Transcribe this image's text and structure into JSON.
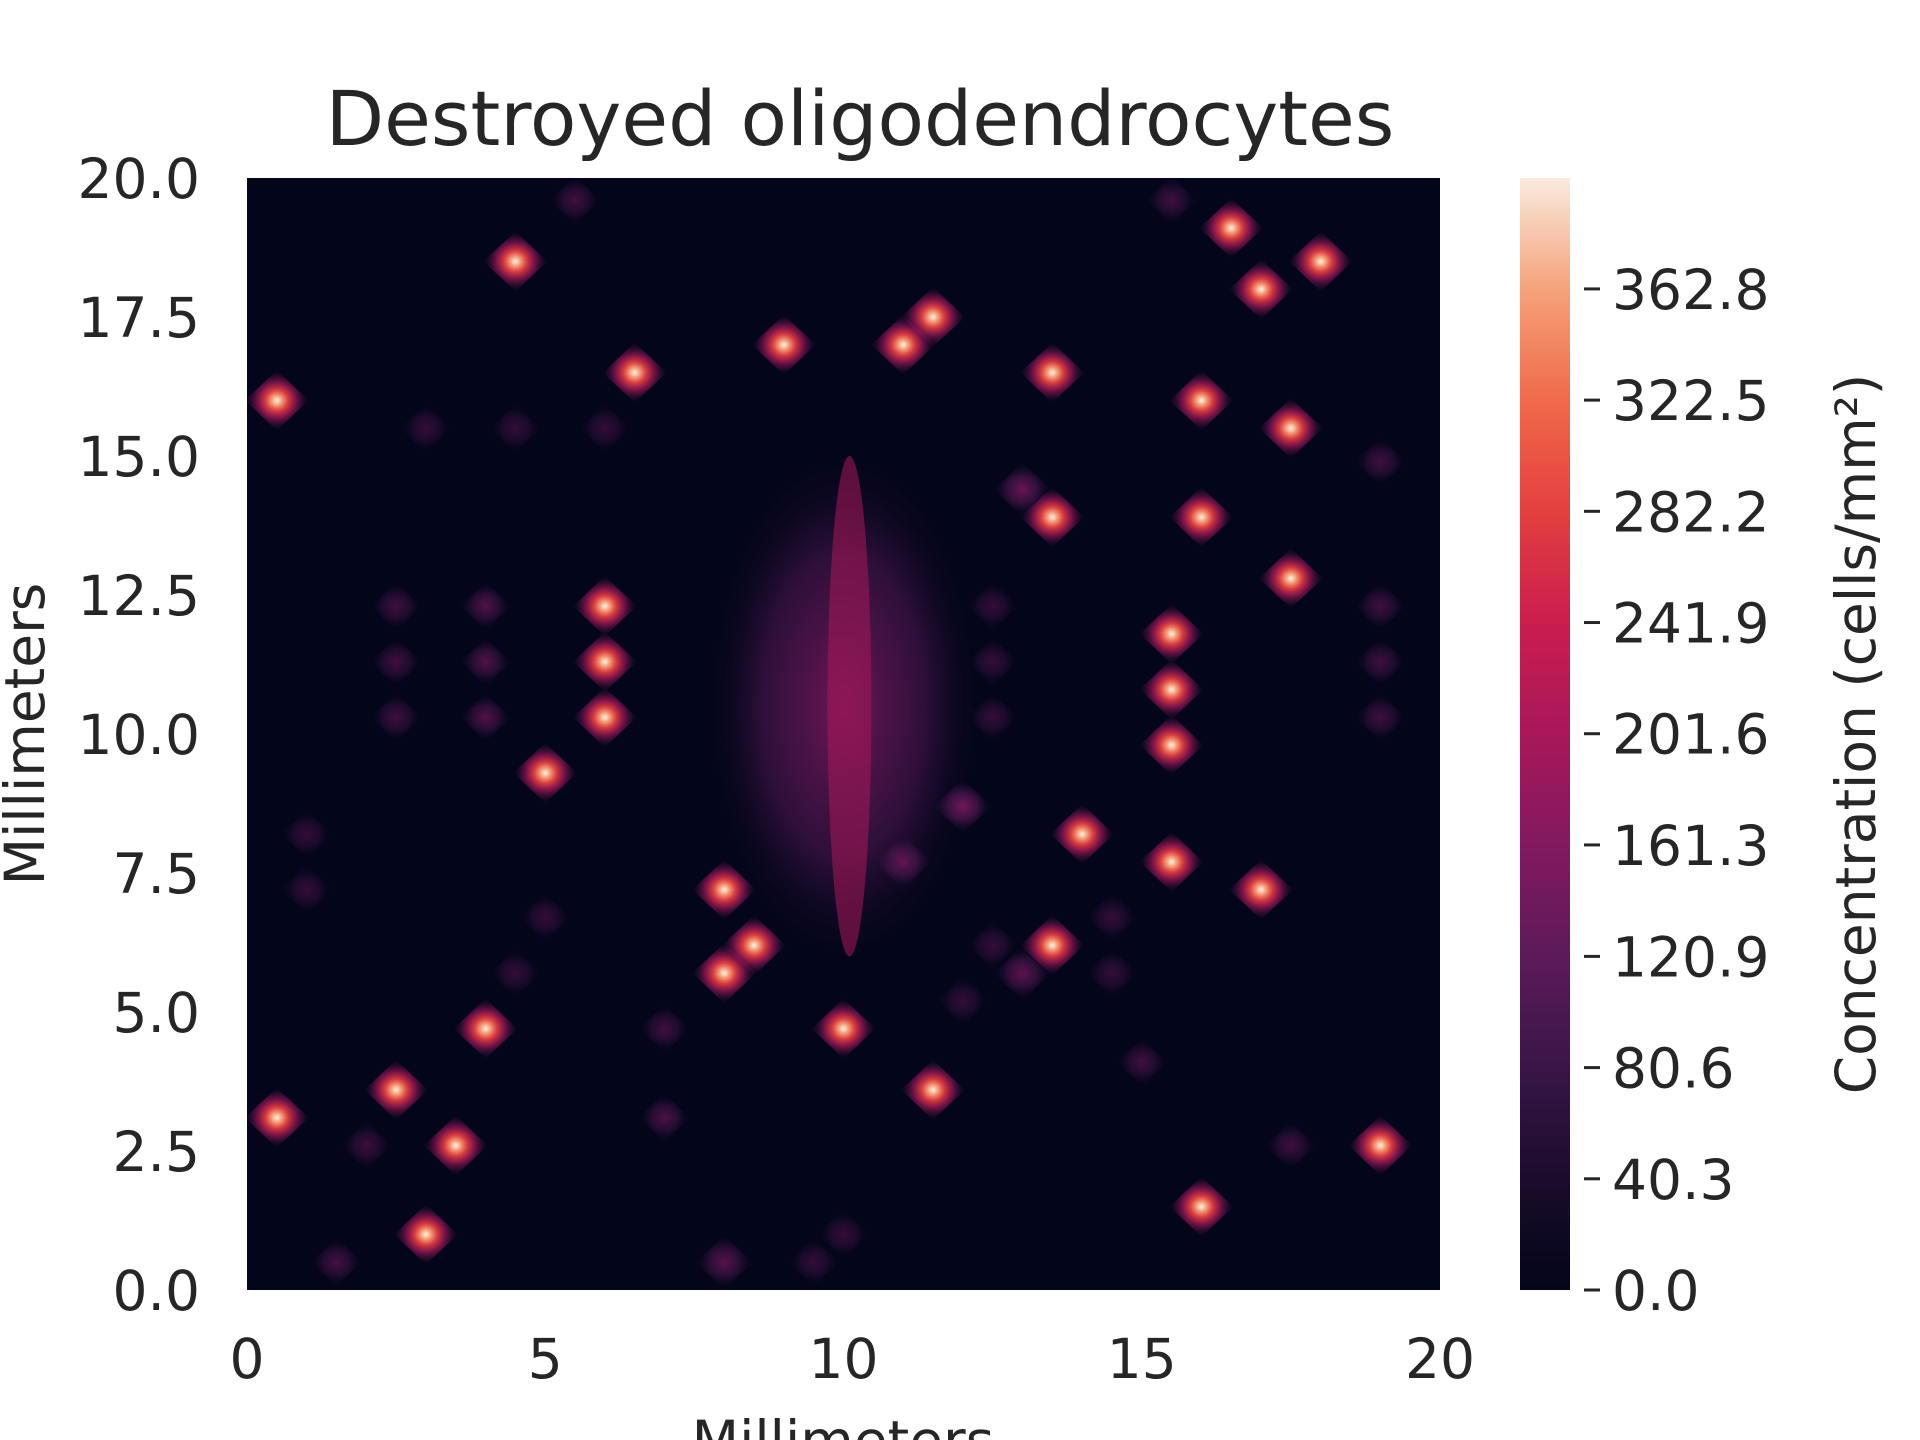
{
  "chart_data": {
    "type": "heatmap",
    "title": "Destroyed oligodendrocytes",
    "xlabel": "Millimeters",
    "ylabel": "Millimeters",
    "xlim": [
      0,
      20
    ],
    "ylim": [
      0,
      20
    ],
    "x_ticks": [
      "0",
      "5",
      "10",
      "15",
      "20"
    ],
    "y_ticks": [
      "0.0",
      "2.5",
      "5.0",
      "7.5",
      "10.0",
      "12.5",
      "15.0",
      "17.5",
      "20.0"
    ],
    "colorbar": {
      "label": "Concentration (cells/mm²)",
      "range": [
        0,
        403
      ],
      "ticks": [
        "0.0",
        "40.3",
        "80.6",
        "120.9",
        "161.3",
        "201.6",
        "241.9",
        "282.2",
        "322.5",
        "362.8"
      ],
      "tick_values": [
        0,
        40.3,
        80.6,
        120.9,
        161.3,
        201.6,
        241.9,
        282.2,
        322.5,
        362.8
      ],
      "colormap": "rocket"
    },
    "hotspots": [
      {
        "x": 0.5,
        "y": 3.1,
        "v": 340
      },
      {
        "x": 0.5,
        "y": 16.0,
        "v": 300
      },
      {
        "x": 1.0,
        "y": 8.2,
        "v": 60
      },
      {
        "x": 1.0,
        "y": 7.2,
        "v": 60
      },
      {
        "x": 1.5,
        "y": 0.5,
        "v": 120
      },
      {
        "x": 2.0,
        "y": 2.6,
        "v": 100
      },
      {
        "x": 2.5,
        "y": 3.6,
        "v": 320
      },
      {
        "x": 2.5,
        "y": 12.3,
        "v": 110
      },
      {
        "x": 2.5,
        "y": 11.3,
        "v": 110
      },
      {
        "x": 2.5,
        "y": 10.3,
        "v": 110
      },
      {
        "x": 3.0,
        "y": 1.0,
        "v": 380
      },
      {
        "x": 3.0,
        "y": 15.5,
        "v": 50
      },
      {
        "x": 3.5,
        "y": 2.6,
        "v": 320
      },
      {
        "x": 4.0,
        "y": 4.7,
        "v": 360
      },
      {
        "x": 4.0,
        "y": 12.3,
        "v": 140
      },
      {
        "x": 4.0,
        "y": 11.3,
        "v": 140
      },
      {
        "x": 4.0,
        "y": 10.3,
        "v": 140
      },
      {
        "x": 4.5,
        "y": 18.5,
        "v": 360
      },
      {
        "x": 4.5,
        "y": 15.5,
        "v": 90
      },
      {
        "x": 4.5,
        "y": 5.7,
        "v": 60
      },
      {
        "x": 5.0,
        "y": 9.3,
        "v": 360
      },
      {
        "x": 5.0,
        "y": 6.7,
        "v": 70
      },
      {
        "x": 5.5,
        "y": 19.6,
        "v": 110
      },
      {
        "x": 6.0,
        "y": 15.5,
        "v": 90
      },
      {
        "x": 6.0,
        "y": 12.3,
        "v": 320
      },
      {
        "x": 6.0,
        "y": 11.3,
        "v": 320
      },
      {
        "x": 6.0,
        "y": 10.3,
        "v": 320
      },
      {
        "x": 6.5,
        "y": 16.5,
        "v": 340
      },
      {
        "x": 7.0,
        "y": 4.7,
        "v": 110
      },
      {
        "x": 7.0,
        "y": 3.1,
        "v": 130
      },
      {
        "x": 8.0,
        "y": 7.2,
        "v": 340
      },
      {
        "x": 8.0,
        "y": 5.7,
        "v": 340
      },
      {
        "x": 8.5,
        "y": 6.2,
        "v": 300
      },
      {
        "x": 8.0,
        "y": 0.5,
        "v": 150
      },
      {
        "x": 9.0,
        "y": 17.0,
        "v": 300
      },
      {
        "x": 10.0,
        "y": 4.7,
        "v": 320
      },
      {
        "x": 11.0,
        "y": 17.0,
        "v": 340
      },
      {
        "x": 11.5,
        "y": 17.5,
        "v": 340
      },
      {
        "x": 11.0,
        "y": 7.7,
        "v": 160
      },
      {
        "x": 11.5,
        "y": 3.6,
        "v": 360
      },
      {
        "x": 12.0,
        "y": 8.7,
        "v": 200
      },
      {
        "x": 12.0,
        "y": 5.2,
        "v": 90
      },
      {
        "x": 12.5,
        "y": 12.3,
        "v": 70
      },
      {
        "x": 12.5,
        "y": 11.3,
        "v": 70
      },
      {
        "x": 12.5,
        "y": 10.3,
        "v": 70
      },
      {
        "x": 12.5,
        "y": 6.2,
        "v": 80
      },
      {
        "x": 13.0,
        "y": 5.7,
        "v": 160
      },
      {
        "x": 13.0,
        "y": 14.4,
        "v": 180
      },
      {
        "x": 13.5,
        "y": 13.9,
        "v": 260
      },
      {
        "x": 13.5,
        "y": 16.5,
        "v": 340
      },
      {
        "x": 13.5,
        "y": 6.2,
        "v": 300
      },
      {
        "x": 14.0,
        "y": 8.2,
        "v": 340
      },
      {
        "x": 14.5,
        "y": 6.7,
        "v": 80
      },
      {
        "x": 14.5,
        "y": 5.7,
        "v": 80
      },
      {
        "x": 15.0,
        "y": 4.1,
        "v": 110
      },
      {
        "x": 15.5,
        "y": 19.6,
        "v": 110
      },
      {
        "x": 15.5,
        "y": 11.8,
        "v": 360
      },
      {
        "x": 15.5,
        "y": 10.8,
        "v": 360
      },
      {
        "x": 15.5,
        "y": 9.8,
        "v": 360
      },
      {
        "x": 15.5,
        "y": 7.7,
        "v": 340
      },
      {
        "x": 16.0,
        "y": 16.0,
        "v": 300
      },
      {
        "x": 16.0,
        "y": 13.9,
        "v": 360
      },
      {
        "x": 16.0,
        "y": 1.5,
        "v": 320
      },
      {
        "x": 16.5,
        "y": 19.1,
        "v": 340
      },
      {
        "x": 17.0,
        "y": 18.0,
        "v": 340
      },
      {
        "x": 17.0,
        "y": 7.2,
        "v": 340
      },
      {
        "x": 17.5,
        "y": 15.5,
        "v": 340
      },
      {
        "x": 17.5,
        "y": 12.8,
        "v": 340
      },
      {
        "x": 17.5,
        "y": 2.6,
        "v": 110
      },
      {
        "x": 18.0,
        "y": 18.5,
        "v": 340
      },
      {
        "x": 19.0,
        "y": 14.9,
        "v": 110
      },
      {
        "x": 19.0,
        "y": 12.3,
        "v": 110
      },
      {
        "x": 19.0,
        "y": 11.3,
        "v": 110
      },
      {
        "x": 19.0,
        "y": 10.3,
        "v": 110
      },
      {
        "x": 19.0,
        "y": 2.6,
        "v": 340
      },
      {
        "x": 10.0,
        "y": 1.0,
        "v": 60
      },
      {
        "x": 9.5,
        "y": 0.5,
        "v": 60
      }
    ],
    "diffuse_region": {
      "x_center": 10,
      "y_center": 10.5,
      "x_range": [
        7.5,
        12
      ],
      "y_range": [
        6,
        15
      ],
      "v": 150
    }
  }
}
